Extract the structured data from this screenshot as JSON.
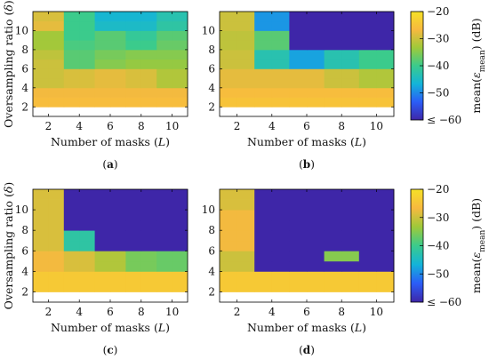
{
  "chart_data": [
    {
      "type": "heatmap",
      "caption": "(a)",
      "xlabel": "Number of masks (L)",
      "ylabel": "Oversampling ratio (δ)",
      "x": [
        1,
        2,
        3,
        4,
        5,
        6,
        7,
        8,
        9,
        10
      ],
      "y": [
        2,
        3,
        4,
        5,
        6,
        7,
        8,
        9,
        10,
        11
      ],
      "x_tick_labels": [
        "2",
        "4",
        "6",
        "8",
        "10"
      ],
      "y_tick_labels": [
        "2",
        "4",
        "6",
        "8",
        "10"
      ],
      "z_units": "mean(ε_mean) (dB)",
      "z": [
        [
          -26,
          -26,
          -26,
          -26,
          -26,
          -26,
          -26,
          -26,
          -26,
          -26
        ],
        [
          -27,
          -27,
          -27,
          -27,
          -27,
          -27,
          -27,
          -27,
          -27,
          -27
        ],
        [
          -30,
          -30,
          -29,
          -29,
          -28,
          -28,
          -29,
          -29,
          -32,
          -32
        ],
        [
          -30,
          -30,
          -29,
          -29,
          -28,
          -28,
          -29,
          -29,
          -32,
          -32
        ],
        [
          -30,
          -30,
          -38,
          -38,
          -35,
          -35,
          -34,
          -34,
          -34,
          -34
        ],
        [
          -31,
          -31,
          -38,
          -38,
          -36,
          -36,
          -35,
          -35,
          -35,
          -35
        ],
        [
          -33,
          -33,
          -39,
          -39,
          -38,
          -38,
          -40,
          -40,
          -37,
          -37
        ],
        [
          -33,
          -33,
          -40,
          -40,
          -38,
          -38,
          -41,
          -41,
          -38,
          -38
        ],
        [
          -28,
          -28,
          -40,
          -40,
          -45,
          -45,
          -45,
          -45,
          -42,
          -42
        ],
        [
          -29,
          -29,
          -40,
          -40,
          -46,
          -46,
          -46,
          -46,
          -43,
          -43
        ]
      ]
    },
    {
      "type": "heatmap",
      "caption": "(b)",
      "xlabel": "Number of masks (L)",
      "ylabel": "",
      "x": [
        1,
        2,
        3,
        4,
        5,
        6,
        7,
        8,
        9,
        10
      ],
      "y": [
        2,
        3,
        4,
        5,
        6,
        7,
        8,
        9,
        10,
        11
      ],
      "x_tick_labels": [
        "2",
        "4",
        "6",
        "8",
        "10"
      ],
      "y_tick_labels": [
        "2",
        "4",
        "6",
        "8",
        "10"
      ],
      "z_units": "mean(ε_mean) (dB)",
      "z": [
        [
          -25,
          -25,
          -25,
          -25,
          -25,
          -25,
          -25,
          -25,
          -25,
          -25
        ],
        [
          -26,
          -26,
          -26,
          -26,
          -26,
          -26,
          -26,
          -26,
          -26,
          -26
        ],
        [
          -28,
          -28,
          -28,
          -28,
          -28,
          -28,
          -30,
          -30,
          -32,
          -32
        ],
        [
          -28,
          -28,
          -28,
          -28,
          -28,
          -28,
          -30,
          -30,
          -32,
          -32
        ],
        [
          -30,
          -30,
          -43,
          -43,
          -48,
          -48,
          -43,
          -43,
          -40,
          -40
        ],
        [
          -30,
          -30,
          -43,
          -43,
          -48,
          -48,
          -43,
          -43,
          -40,
          -40
        ],
        [
          -31,
          -31,
          -38,
          -38,
          -60,
          -60,
          -60,
          -60,
          -60,
          -60
        ],
        [
          -31,
          -31,
          -38,
          -38,
          -60,
          -60,
          -60,
          -60,
          -60,
          -60
        ],
        [
          -30,
          -30,
          -49,
          -49,
          -60,
          -60,
          -60,
          -60,
          -60,
          -60
        ],
        [
          -30,
          -30,
          -49,
          -49,
          -60,
          -60,
          -60,
          -60,
          -60,
          -60
        ]
      ]
    },
    {
      "type": "heatmap",
      "caption": "(c)",
      "xlabel": "Number of masks (L)",
      "ylabel": "Oversampling ratio (δ)",
      "x": [
        1,
        2,
        3,
        4,
        5,
        6,
        7,
        8,
        9,
        10
      ],
      "y": [
        2,
        3,
        4,
        5,
        6,
        7,
        8,
        9,
        10,
        11
      ],
      "x_tick_labels": [
        "2",
        "4",
        "6",
        "8",
        "10"
      ],
      "y_tick_labels": [
        "2",
        "4",
        "6",
        "8",
        "10"
      ],
      "z_units": "mean(ε_mean) (dB)",
      "z": [
        [
          -24,
          -24,
          -24,
          -24,
          -24,
          -24,
          -24,
          -24,
          -24,
          -24
        ],
        [
          -24,
          -24,
          -24,
          -24,
          -24,
          -24,
          -24,
          -24,
          -24,
          -24
        ],
        [
          -27,
          -27,
          -29,
          -29,
          -32,
          -32,
          -36,
          -36,
          -37,
          -37
        ],
        [
          -27,
          -27,
          -29,
          -29,
          -32,
          -32,
          -36,
          -36,
          -37,
          -37
        ],
        [
          -29,
          -29,
          -42,
          -42,
          -60,
          -60,
          -60,
          -60,
          -60,
          -60
        ],
        [
          -29,
          -29,
          -42,
          -42,
          -60,
          -60,
          -60,
          -60,
          -60,
          -60
        ],
        [
          -29,
          -29,
          -60,
          -60,
          -60,
          -60,
          -60,
          -60,
          -60,
          -60
        ],
        [
          -29,
          -29,
          -60,
          -60,
          -60,
          -60,
          -60,
          -60,
          -60,
          -60
        ],
        [
          -29,
          -29,
          -60,
          -60,
          -60,
          -60,
          -60,
          -60,
          -60,
          -60
        ],
        [
          -29,
          -29,
          -60,
          -60,
          -60,
          -60,
          -60,
          -60,
          -60,
          -60
        ]
      ]
    },
    {
      "type": "heatmap",
      "caption": "(d)",
      "xlabel": "Number of masks (L)",
      "ylabel": "",
      "x": [
        1,
        2,
        3,
        4,
        5,
        6,
        7,
        8,
        9,
        10
      ],
      "y": [
        2,
        3,
        4,
        5,
        6,
        7,
        8,
        9,
        10,
        11
      ],
      "x_tick_labels": [
        "2",
        "4",
        "6",
        "8",
        "10"
      ],
      "y_tick_labels": [
        "2",
        "4",
        "6",
        "8",
        "10"
      ],
      "z_units": "mean(ε_mean) (dB)",
      "z": [
        [
          -24,
          -24,
          -24,
          -24,
          -24,
          -24,
          -24,
          -24,
          -24,
          -24
        ],
        [
          -24,
          -24,
          -24,
          -24,
          -24,
          -24,
          -24,
          -24,
          -24,
          -24
        ],
        [
          -30,
          -30,
          -60,
          -60,
          -60,
          -60,
          -60,
          -60,
          -60,
          -60
        ],
        [
          -30,
          -30,
          -60,
          -60,
          -60,
          -60,
          -35,
          -35,
          -60,
          -60
        ],
        [
          -27,
          -27,
          -60,
          -60,
          -60,
          -60,
          -60,
          -60,
          -60,
          -60
        ],
        [
          -27,
          -27,
          -60,
          -60,
          -60,
          -60,
          -60,
          -60,
          -60,
          -60
        ],
        [
          -27,
          -27,
          -60,
          -60,
          -60,
          -60,
          -60,
          -60,
          -60,
          -60
        ],
        [
          -27,
          -27,
          -60,
          -60,
          -60,
          -60,
          -60,
          -60,
          -60,
          -60
        ],
        [
          -29,
          -29,
          -60,
          -60,
          -60,
          -60,
          -60,
          -60,
          -60,
          -60
        ],
        [
          -29,
          -29,
          -60,
          -60,
          -60,
          -60,
          -60,
          -60,
          -60,
          -60
        ]
      ]
    }
  ],
  "colorbars": [
    {
      "label": "mean(ε_mean) (dB)",
      "range": [
        -60,
        -20
      ],
      "tick_labels": [
        "−20",
        "−30",
        "−40",
        "−50",
        "≤ −60"
      ],
      "tick_values": [
        -20,
        -30,
        -40,
        -50,
        -60
      ]
    },
    {
      "label": "mean(ε_mean) (dB)",
      "range": [
        -60,
        -20
      ],
      "tick_labels": [
        "−20",
        "−30",
        "−40",
        "−50",
        "≤ −60"
      ],
      "tick_values": [
        -20,
        -30,
        -40,
        -50,
        -60
      ]
    }
  ],
  "colormap": [
    "#3e26a8",
    "#2b5df7",
    "#13b4d9",
    "#3bcb8c",
    "#9fc93a",
    "#f7b93f",
    "#f5e127"
  ]
}
